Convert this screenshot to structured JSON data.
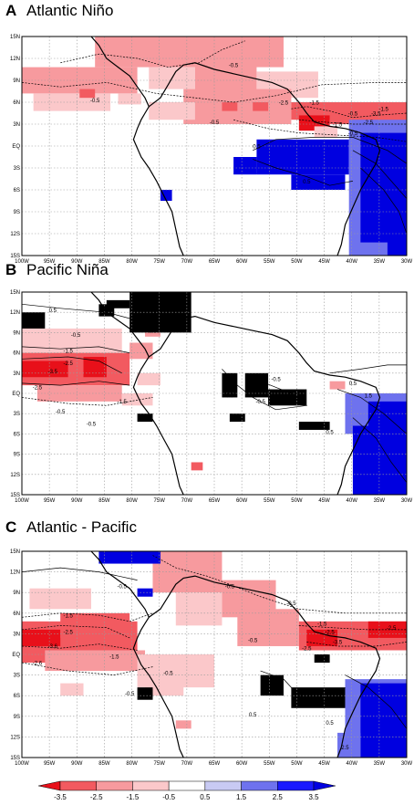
{
  "panels": [
    {
      "letter": "A",
      "title": "Atlantic Niño"
    },
    {
      "letter": "B",
      "title": "Pacific Niña"
    },
    {
      "letter": "C",
      "title": "Atlantic - Pacific"
    }
  ],
  "map": {
    "lon_ticks": [
      "100W",
      "95W",
      "90W",
      "85W",
      "80W",
      "75W",
      "70W",
      "65W",
      "60W",
      "55W",
      "50W",
      "45W",
      "40W",
      "35W",
      "30W"
    ],
    "lat_ticks": [
      "15N",
      "12N",
      "9N",
      "6N",
      "3N",
      "EQ",
      "3S",
      "6S",
      "9S",
      "12S",
      "15S"
    ],
    "contour_labels": {
      "a": [
        "-0.5",
        "-0.5",
        "-0.5",
        "-1.5",
        "-1.5",
        "-2.5",
        "-0.5",
        "-3.5",
        "-2.5",
        "-1.5",
        "-0.5",
        "0.5",
        "0.5"
      ],
      "b": [
        "-0.5",
        "-0.5",
        "-1.5",
        "-2.5",
        "-3.5",
        "-2.5",
        "-1.5",
        "-0.5",
        "0.5",
        "0.5",
        "0.5",
        "-0.5",
        "0.5",
        "1.5",
        "-0.5",
        "0.5"
      ],
      "c": [
        "-0.5",
        "-1.5",
        "-2.5",
        "-3.6",
        "-2.6",
        "-1.5",
        "-0.5",
        "-0.5",
        "-0.5",
        "-1.5",
        "-2.5",
        "-3.5",
        "-2.5",
        "-1.5",
        "-0.5",
        "-2.5",
        "0.5",
        "0.5",
        "2.5",
        "-0.5"
      ]
    }
  },
  "colorbar": {
    "labels": [
      "-3.5",
      "-2.5",
      "-1.5",
      "-0.5",
      "0.5",
      "1.5",
      "2.5",
      "3.5"
    ],
    "colors": [
      "#e8101a",
      "#f25a60",
      "#f79a9e",
      "#fbc8ca",
      "#ffffff",
      "#c8caf3",
      "#6e72ee",
      "#1a1aff",
      "#0000e0"
    ]
  }
}
